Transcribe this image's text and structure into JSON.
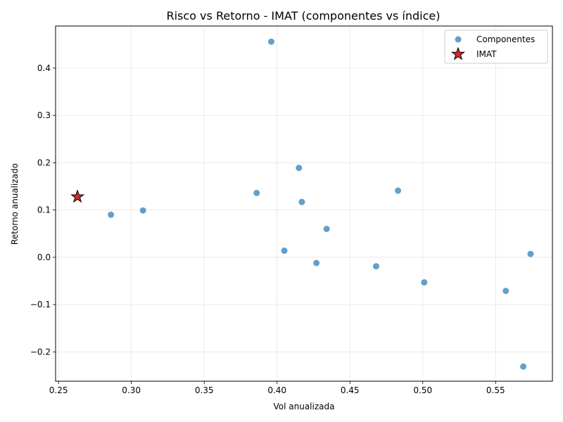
{
  "chart_data": {
    "type": "scatter",
    "title": "Risco vs Retorno - IMAT (componentes vs índice)",
    "xlabel": "Vol anualizada",
    "ylabel": "Retorno anualizado",
    "xlim": [
      0.248,
      0.589
    ],
    "ylim": [
      -0.262,
      0.489
    ],
    "xticks": [
      0.25,
      0.3,
      0.35,
      0.4,
      0.45,
      0.5,
      0.55
    ],
    "xtick_labels": [
      "0.25",
      "0.30",
      "0.35",
      "0.40",
      "0.45",
      "0.50",
      "0.55"
    ],
    "yticks": [
      -0.2,
      -0.1,
      0.0,
      0.1,
      0.2,
      0.3,
      0.4
    ],
    "ytick_labels": [
      "−0.2",
      "−0.1",
      "0.0",
      "0.1",
      "0.2",
      "0.3",
      "0.4"
    ],
    "grid": true,
    "legend_position": "top-right",
    "series": [
      {
        "name": "Componentes",
        "marker": "circle",
        "color": "#1f77b4",
        "points": [
          {
            "x": 0.286,
            "y": 0.09
          },
          {
            "x": 0.308,
            "y": 0.099
          },
          {
            "x": 0.386,
            "y": 0.136
          },
          {
            "x": 0.396,
            "y": 0.456
          },
          {
            "x": 0.405,
            "y": 0.014
          },
          {
            "x": 0.415,
            "y": 0.189
          },
          {
            "x": 0.417,
            "y": 0.117
          },
          {
            "x": 0.427,
            "y": -0.012
          },
          {
            "x": 0.434,
            "y": 0.06
          },
          {
            "x": 0.468,
            "y": -0.019
          },
          {
            "x": 0.483,
            "y": 0.141
          },
          {
            "x": 0.501,
            "y": -0.053
          },
          {
            "x": 0.557,
            "y": -0.071
          },
          {
            "x": 0.569,
            "y": -0.231
          },
          {
            "x": 0.574,
            "y": 0.007
          }
        ]
      },
      {
        "name": "IMAT",
        "marker": "star",
        "color": "#d62728",
        "points": [
          {
            "x": 0.263,
            "y": 0.128
          }
        ]
      }
    ]
  }
}
